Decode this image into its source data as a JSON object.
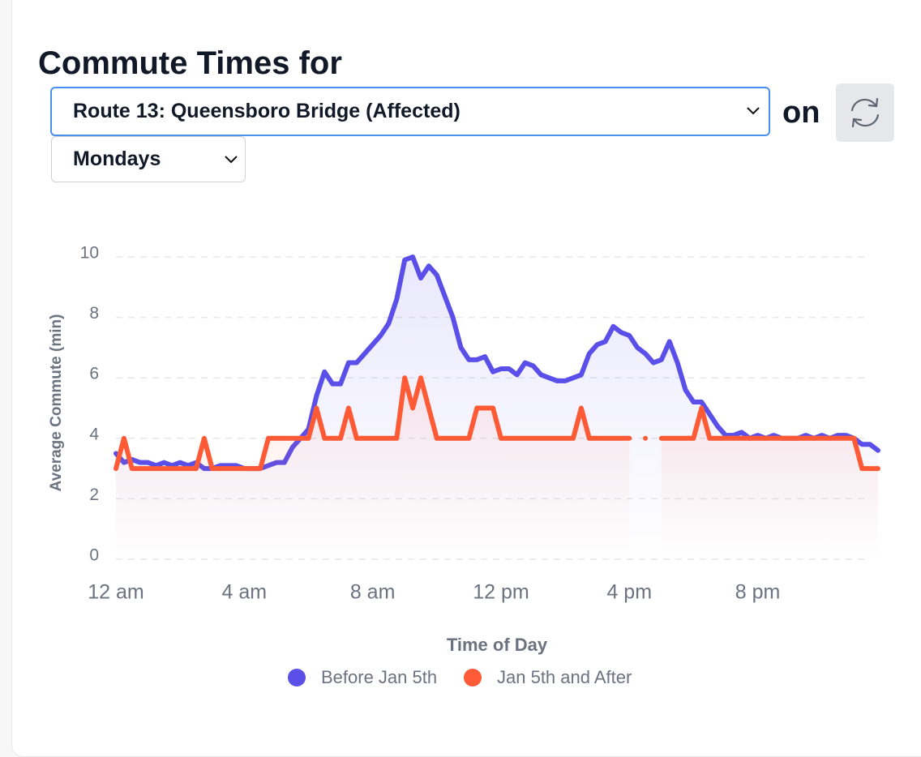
{
  "header": {
    "title": "Commute Times for",
    "route_select": "Route 13: Queensboro Bridge (Affected)",
    "on_label": "on",
    "day_select": "Mondays"
  },
  "chart_data": {
    "type": "line",
    "x_label": "Time of Day",
    "y_label": "Average Commute (min)",
    "x": [
      0,
      0.25,
      0.5,
      0.75,
      1,
      1.25,
      1.5,
      1.75,
      2,
      2.25,
      2.5,
      2.75,
      3,
      3.25,
      3.5,
      3.75,
      4,
      4.25,
      4.5,
      4.75,
      5,
      5.25,
      5.5,
      5.75,
      6,
      6.25,
      6.5,
      6.75,
      7,
      7.25,
      7.5,
      7.75,
      8,
      8.25,
      8.5,
      8.75,
      9,
      9.25,
      9.5,
      9.75,
      10,
      10.25,
      10.5,
      10.75,
      11,
      11.25,
      11.5,
      11.75,
      12,
      12.25,
      12.5,
      12.75,
      13,
      13.25,
      13.5,
      13.75,
      14,
      14.25,
      14.5,
      14.75,
      15,
      15.25,
      15.5,
      15.75,
      16,
      16.25,
      16.5,
      16.75,
      17,
      17.25,
      17.5,
      17.75,
      18,
      18.25,
      18.5,
      18.75,
      19,
      19.25,
      19.5,
      19.75,
      20,
      20.25,
      20.5,
      20.75,
      21,
      21.25,
      21.5,
      21.75,
      22,
      22.25,
      22.5,
      22.75,
      23,
      23.25,
      23.5,
      23.75
    ],
    "series": [
      {
        "name": "Before Jan 5th",
        "color": "#5a4fe8",
        "values": [
          3.5,
          3.2,
          3.3,
          3.2,
          3.2,
          3.1,
          3.2,
          3.1,
          3.2,
          3.1,
          3.2,
          3.0,
          3.0,
          3.1,
          3.1,
          3.1,
          3.0,
          3.0,
          3.0,
          3.1,
          3.2,
          3.2,
          3.7,
          4.0,
          4.3,
          5.4,
          6.2,
          5.8,
          5.8,
          6.5,
          6.5,
          6.8,
          7.1,
          7.4,
          7.8,
          8.6,
          9.9,
          10.0,
          9.3,
          9.7,
          9.4,
          8.7,
          8.0,
          7.0,
          6.6,
          6.6,
          6.7,
          6.2,
          6.3,
          6.3,
          6.1,
          6.5,
          6.4,
          6.1,
          6.0,
          5.9,
          5.9,
          6.0,
          6.1,
          6.8,
          7.1,
          7.2,
          7.7,
          7.5,
          7.4,
          7.0,
          6.8,
          6.5,
          6.6,
          7.2,
          6.5,
          5.6,
          5.2,
          5.2,
          4.8,
          4.4,
          4.1,
          4.1,
          4.2,
          4.0,
          4.1,
          4.0,
          4.1,
          4.0,
          4.0,
          4.0,
          4.1,
          4.0,
          4.1,
          4.0,
          4.1,
          4.1,
          4.0,
          3.8,
          3.8,
          3.6
        ]
      },
      {
        "name": "Jan 5th and After",
        "color": "#ff5a36",
        "values": [
          3,
          4,
          3,
          3,
          3,
          3,
          3,
          3,
          3,
          3,
          3,
          4,
          3,
          3,
          3,
          3,
          3,
          3,
          3,
          4,
          4,
          4,
          4,
          4,
          4,
          5,
          4,
          4,
          4,
          5,
          4,
          4,
          4,
          4,
          4,
          4,
          6,
          5,
          6,
          5,
          4,
          4,
          4,
          4,
          4,
          5,
          5,
          5,
          4,
          4,
          4,
          4,
          4,
          4,
          4,
          4,
          4,
          4,
          5,
          4,
          4,
          4,
          4,
          4,
          4,
          null,
          4,
          null,
          4,
          4,
          4,
          4,
          4,
          5,
          4,
          4,
          4,
          4,
          4,
          4,
          4,
          4,
          4,
          4,
          4,
          4,
          4,
          4,
          4,
          4,
          4,
          4,
          4,
          3,
          3,
          3
        ]
      }
    ],
    "xlim": [
      0,
      23.75
    ],
    "xticks": [
      {
        "value": 0,
        "label": "12 am"
      },
      {
        "value": 4,
        "label": "4 am"
      },
      {
        "value": 8,
        "label": "8 am"
      },
      {
        "value": 12,
        "label": "12 pm"
      },
      {
        "value": 16,
        "label": "4 pm"
      },
      {
        "value": 20,
        "label": "8 pm"
      }
    ],
    "ylim": [
      0,
      10
    ],
    "yticks": [
      0,
      2,
      4,
      6,
      8,
      10
    ],
    "grid": true
  }
}
